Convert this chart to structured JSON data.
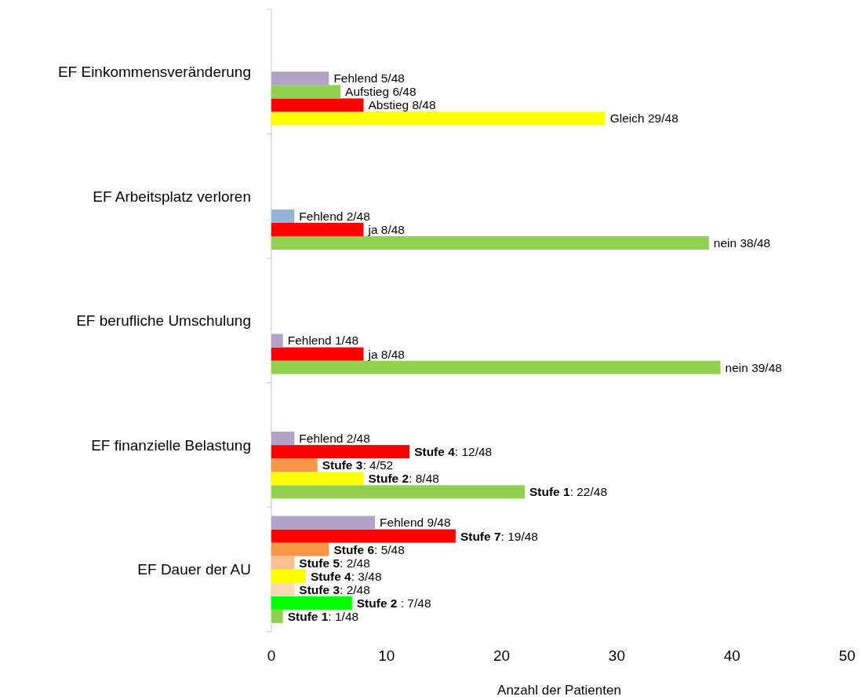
{
  "chart_data": {
    "type": "bar",
    "orientation": "horizontal",
    "xlabel": "Anzahl der Patienten",
    "categories": [
      "EF Einkommensveränderung",
      "EF Arbeitsplatz verloren",
      "EF berufliche Umschulung",
      "EF finanzielle Belastung",
      "EF Dauer der AU"
    ],
    "xlim": [
      0,
      50
    ],
    "xticks": [
      0,
      10,
      20,
      30,
      40,
      50
    ],
    "grid": false,
    "series": [
      {
        "values": [
          29,
          38,
          39,
          22,
          1
        ],
        "colors": [
          "#ffff00",
          "#92d050",
          "#92d050",
          "#92d050",
          "#92d050"
        ],
        "value_labels": [
          "Gleich 29/48",
          "nein 38/48",
          "nein 39/48",
          "Stufe 1: 22/48",
          "Stufe 1: 1/48"
        ]
      },
      {
        "values": [
          8,
          8,
          8,
          8,
          7
        ],
        "colors": [
          "#ff0000",
          "#ff0000",
          "#ff0000",
          "#ffff00",
          "#00ff00"
        ],
        "value_labels": [
          "Abstieg 8/48",
          "ja 8/48",
          "ja 8/48",
          "Stufe 2: 8/48",
          "Stufe 2 : 7/48"
        ]
      },
      {
        "values": [
          6,
          2,
          1,
          4,
          2
        ],
        "colors": [
          "#92d050",
          "#95b3d7",
          "#b3a2c7",
          "#f79646",
          "#fcd5b5"
        ],
        "value_labels": [
          "Aufstieg 6/48",
          "Fehlend 2/48",
          "Fehlend 1/48",
          "Stufe 3: 4/52",
          "Stufe 3: 2/48"
        ]
      },
      {
        "values": [
          5,
          null,
          null,
          12,
          3
        ],
        "colors": [
          "#b3a2c7",
          null,
          null,
          "#ff0000",
          "#ffff00"
        ],
        "value_labels": [
          "Fehlend 5/48",
          null,
          null,
          "Stufe 4: 12/48",
          "Stufe 4: 3/48"
        ]
      },
      {
        "values": [
          null,
          null,
          null,
          2,
          2
        ],
        "colors": [
          null,
          null,
          null,
          "#b3a2c7",
          "#fac090"
        ],
        "value_labels": [
          null,
          null,
          null,
          "Fehlend 2/48",
          "Stufe 5: 2/48"
        ]
      },
      {
        "values": [
          null,
          null,
          null,
          null,
          5
        ],
        "colors": [
          null,
          null,
          null,
          null,
          "#f79646"
        ],
        "value_labels": [
          null,
          null,
          null,
          null,
          "Stufe 6: 5/48"
        ]
      },
      {
        "values": [
          null,
          null,
          null,
          null,
          16
        ],
        "colors": [
          null,
          null,
          null,
          null,
          "#ff0000"
        ],
        "value_labels": [
          null,
          null,
          null,
          null,
          "Stufe 7: 19/48"
        ]
      },
      {
        "values": [
          null,
          null,
          null,
          null,
          9
        ],
        "colors": [
          null,
          null,
          null,
          null,
          "#b3a2c7"
        ],
        "value_labels": [
          null,
          null,
          null,
          null,
          "Fehlend 9/48"
        ]
      }
    ]
  }
}
